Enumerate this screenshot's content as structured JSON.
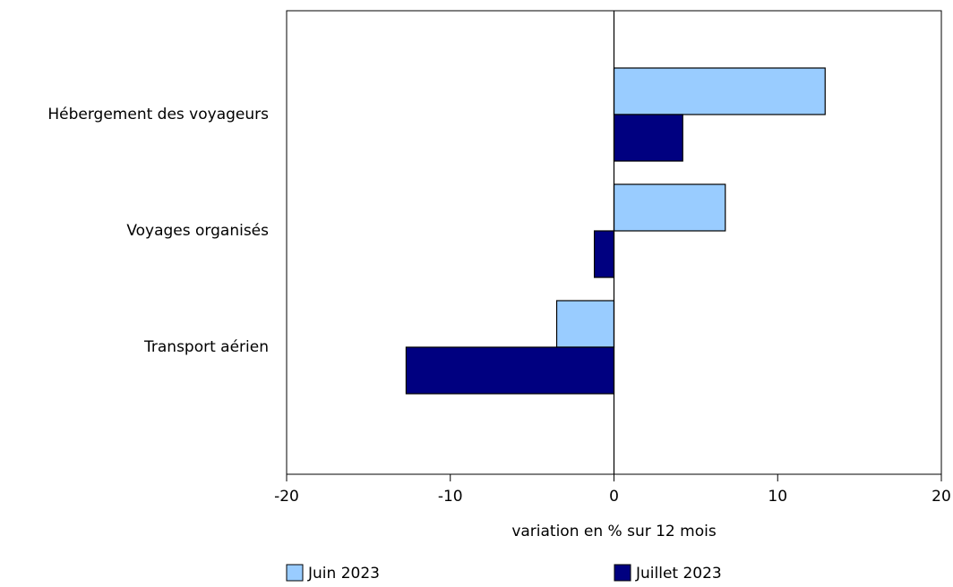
{
  "chart_data": {
    "type": "barh",
    "categories": [
      "Hébergement des voyageurs",
      "Voyages organisés",
      "Transport aérien"
    ],
    "series": [
      {
        "name": "Juin 2023",
        "color": "#99ccff",
        "values": [
          12.9,
          6.8,
          -3.5
        ]
      },
      {
        "name": "Juillet 2023",
        "color": "#000080",
        "values": [
          4.2,
          -1.2,
          -12.7
        ]
      }
    ],
    "xlim": [
      -20,
      20
    ],
    "xticks": [
      -20,
      -10,
      0,
      10,
      20
    ],
    "xlabel": "variation en % sur 12 mois",
    "grid": false,
    "legend": "bottom"
  }
}
